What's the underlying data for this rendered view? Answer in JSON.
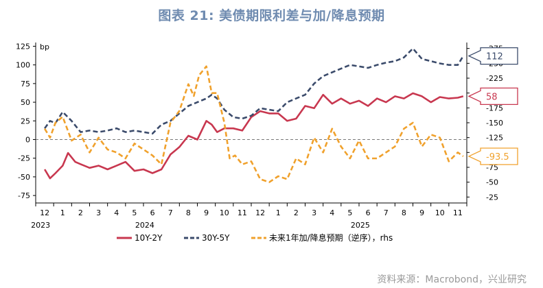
{
  "title": "图表 21: 美债期限利差与加/降息预期",
  "source": "资料来源：Macrobond，兴业研究",
  "chart_data": {
    "type": "line",
    "title": "图表 21: 美债期限利差与加/降息预期",
    "y_left": {
      "label": "bp",
      "ticks": [
        125,
        100,
        75,
        50,
        25,
        0,
        -25,
        -50,
        -75
      ],
      "range": [
        -85,
        130
      ]
    },
    "y_right": {
      "ticks": [
        -25,
        -50,
        -75,
        -100,
        -125,
        -150,
        -175,
        -200,
        -225,
        -250,
        -275
      ],
      "tick_labels": [
        "-25",
        "-50",
        "-75",
        "-100",
        "-125",
        "-150",
        "-175",
        "-200",
        "-225",
        "-250",
        "-275"
      ],
      "range": [
        -15,
        -285
      ]
    },
    "x_month_labels": [
      "12",
      "1",
      "2",
      "3",
      "4",
      "5",
      "6",
      "7",
      "8",
      "9",
      "10",
      "11",
      "12",
      "1",
      "2",
      "3",
      "4",
      "5",
      "6",
      "7",
      "8",
      "9",
      "10",
      "11"
    ],
    "x_year_labels": [
      {
        "label": "2023",
        "index": 0
      },
      {
        "label": "2024",
        "index": 5.8
      },
      {
        "label": "2025",
        "index": 17.8
      }
    ],
    "zero_line": "dashed",
    "series": [
      {
        "name": "10Y-2Y",
        "color": "#c8374f",
        "dash": "solid",
        "axis": "left",
        "x": [
          0,
          0.3,
          0.6,
          1.0,
          1.3,
          1.7,
          2.0,
          2.5,
          3.0,
          3.5,
          4.0,
          4.5,
          5.0,
          5.5,
          6.0,
          6.5,
          7.0,
          7.5,
          8.0,
          8.5,
          9.0,
          9.3,
          9.6,
          10.0,
          10.5,
          11.0,
          11.5,
          12.0,
          12.5,
          13.0,
          13.5,
          14.0,
          14.5,
          15.0,
          15.5,
          16.0,
          16.5,
          17.0,
          17.5,
          18.0,
          18.5,
          19.0,
          19.5,
          20.0,
          20.5,
          21.0,
          21.5,
          22.0,
          22.5,
          23.0,
          23.3
        ],
        "y": [
          -40,
          -52,
          -45,
          -35,
          -18,
          -30,
          -33,
          -38,
          -35,
          -40,
          -35,
          -30,
          -42,
          -40,
          -45,
          -40,
          -20,
          -10,
          5,
          0,
          25,
          20,
          10,
          15,
          15,
          12,
          30,
          38,
          35,
          35,
          25,
          28,
          45,
          42,
          60,
          48,
          55,
          48,
          52,
          45,
          55,
          50,
          58,
          55,
          62,
          58,
          50,
          57,
          55,
          56,
          58
        ]
      },
      {
        "name": "30Y-5Y",
        "color": "#3b4b6b",
        "dash": "dashed",
        "axis": "left",
        "x": [
          0,
          0.3,
          0.6,
          1.0,
          1.5,
          2.0,
          2.5,
          3.0,
          3.5,
          4.0,
          4.5,
          5.0,
          5.5,
          6.0,
          6.5,
          7.0,
          7.5,
          8.0,
          8.5,
          9.0,
          9.3,
          9.6,
          10.0,
          10.5,
          11.0,
          11.5,
          12.0,
          12.5,
          13.0,
          13.5,
          14.0,
          14.5,
          15.0,
          15.5,
          16.0,
          16.5,
          17.0,
          17.5,
          18.0,
          18.5,
          19.0,
          19.5,
          20.0,
          20.5,
          21.0,
          21.5,
          22.0,
          22.5,
          23.0,
          23.3
        ],
        "y": [
          15,
          25,
          22,
          37,
          25,
          10,
          12,
          10,
          12,
          15,
          10,
          12,
          10,
          8,
          20,
          25,
          35,
          45,
          50,
          55,
          60,
          55,
          40,
          30,
          28,
          32,
          42,
          40,
          38,
          50,
          55,
          60,
          75,
          85,
          90,
          95,
          100,
          98,
          96,
          100,
          103,
          105,
          110,
          122,
          108,
          105,
          102,
          100,
          100,
          112
        ]
      },
      {
        "name": "未来1年加/降息预期（逆序），rhs",
        "color": "#f0a12c",
        "dash": "dashed",
        "axis": "right",
        "x": [
          0,
          0.3,
          0.6,
          1.0,
          1.5,
          2.0,
          2.5,
          3.0,
          3.5,
          4.0,
          4.5,
          5.0,
          5.5,
          6.0,
          6.5,
          7.0,
          7.5,
          8.0,
          8.3,
          8.6,
          9.0,
          9.3,
          9.6,
          10.0,
          10.3,
          10.6,
          11.0,
          11.5,
          12.0,
          12.5,
          13.0,
          13.5,
          14.0,
          14.5,
          15.0,
          15.5,
          16.0,
          16.5,
          17.0,
          17.5,
          18.0,
          18.5,
          19.0,
          19.5,
          20.0,
          20.5,
          21.0,
          21.5,
          22.0,
          22.5,
          23.0,
          23.3
        ],
        "y": [
          -140,
          -125,
          -150,
          -160,
          -120,
          -130,
          -100,
          -125,
          -105,
          -100,
          -90,
          -115,
          -105,
          -95,
          -80,
          -150,
          -170,
          -215,
          -195,
          -230,
          -245,
          -200,
          -200,
          -150,
          -90,
          -95,
          -80,
          -85,
          -55,
          -50,
          -60,
          -55,
          -90,
          -80,
          -125,
          -100,
          -140,
          -110,
          -90,
          -120,
          -90,
          -90,
          -100,
          -110,
          -140,
          -150,
          -110,
          -130,
          -125,
          -85,
          -100,
          -93.5
        ]
      }
    ],
    "end_labels": [
      {
        "series": "30Y-5Y",
        "value": "112"
      },
      {
        "series": "10Y-2Y",
        "value": "58"
      },
      {
        "series": "未来1年加/降息预期（逆序），rhs",
        "value": "-93.5"
      }
    ],
    "legend": {
      "position": "bottom",
      "items": [
        "10Y-2Y",
        "30Y-5Y",
        "未来1年加/降息预期（逆序），rhs"
      ]
    }
  }
}
